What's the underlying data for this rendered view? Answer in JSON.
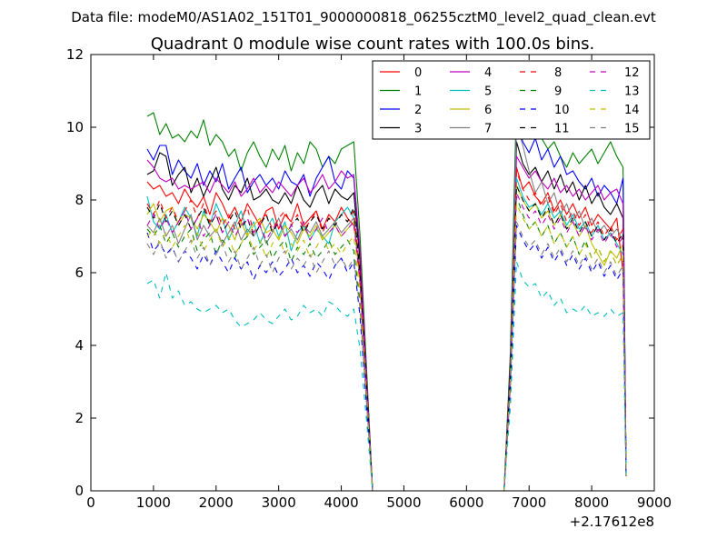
{
  "chart_data": {
    "type": "line",
    "suptitle": "Data file: modeM0/AS1A02_151T01_9000000818_06255cztM0_level2_quad_clean.evt",
    "title": "Quadrant 0 module wise count rates with 100.0s bins.",
    "xlabel": "",
    "ylabel": "",
    "offset_label": "+2.17612e8",
    "xlim": [
      0,
      9000
    ],
    "ylim": [
      0,
      12
    ],
    "x_ticks": [
      "0",
      "1000",
      "2000",
      "3000",
      "4000",
      "5000",
      "6000",
      "7000",
      "8000",
      "9000"
    ],
    "y_ticks": [
      "0",
      "2",
      "4",
      "6",
      "8",
      "10",
      "12"
    ],
    "legend_position": "top-right",
    "legend_columns": 4,
    "x": [
      900,
      1000,
      1100,
      1200,
      1300,
      1400,
      1500,
      1600,
      1700,
      1800,
      1900,
      2000,
      2100,
      2200,
      2300,
      2400,
      2500,
      2600,
      2700,
      2800,
      2900,
      3000,
      3100,
      3200,
      3300,
      3400,
      3500,
      3600,
      3700,
      3800,
      3900,
      4000,
      4100,
      4200,
      4300,
      4400,
      4500,
      4600,
      6600,
      6700,
      6800,
      6900,
      7000,
      7100,
      7200,
      7300,
      7400,
      7500,
      7600,
      7700,
      7800,
      7900,
      8000,
      8100,
      8200,
      8300,
      8400,
      8500,
      8550
    ],
    "series": [
      {
        "name": "0",
        "color": "#ff0000",
        "dashed": false,
        "values": [
          8.5,
          8.3,
          8.4,
          8.1,
          8.2,
          7.9,
          8.3,
          8.0,
          7.8,
          8.1,
          7.6,
          8.2,
          7.9,
          7.5,
          7.8,
          7.4,
          7.9,
          7.6,
          7.3,
          7.7,
          7.8,
          7.2,
          7.6,
          7.4,
          7.9,
          7.3,
          7.5,
          7.7,
          7.2,
          7.6,
          7.4,
          7.8,
          7.5,
          7.3,
          6.0,
          3.0,
          0.0,
          0.0,
          0.0,
          3.0,
          8.9,
          8.3,
          8.5,
          8.1,
          7.9,
          8.2,
          7.7,
          8.0,
          7.6,
          7.9,
          7.5,
          7.8,
          7.3,
          7.6,
          7.4,
          7.2,
          7.5,
          6.0,
          0.5
        ]
      },
      {
        "name": "1",
        "color": "#008000",
        "dashed": false,
        "values": [
          10.3,
          10.4,
          9.8,
          10.1,
          9.7,
          9.8,
          9.6,
          9.9,
          9.7,
          10.2,
          9.5,
          9.8,
          9.6,
          9.2,
          9.4,
          8.8,
          9.3,
          9.6,
          9.2,
          8.9,
          9.4,
          9.1,
          9.5,
          8.8,
          9.3,
          9.0,
          9.6,
          9.4,
          8.9,
          9.2,
          9.0,
          9.4,
          9.5,
          9.6,
          7.0,
          3.5,
          0.0,
          0.0,
          0.0,
          3.8,
          10.8,
          10.3,
          9.8,
          10.0,
          9.7,
          9.4,
          9.6,
          9.2,
          8.9,
          9.3,
          9.0,
          9.2,
          9.4,
          9.0,
          9.3,
          9.6,
          9.2,
          8.9,
          0.5
        ]
      },
      {
        "name": "2",
        "color": "#0000ff",
        "dashed": false,
        "values": [
          9.4,
          9.1,
          9.5,
          9.5,
          8.7,
          9.1,
          8.8,
          8.6,
          9.0,
          8.4,
          8.8,
          8.5,
          9.0,
          8.3,
          8.6,
          8.9,
          8.2,
          8.5,
          8.7,
          8.4,
          8.6,
          8.3,
          8.8,
          8.5,
          8.4,
          8.7,
          8.1,
          8.6,
          8.9,
          9.2,
          8.5,
          8.3,
          8.8,
          8.6,
          6.5,
          3.2,
          0.0,
          0.0,
          0.0,
          3.5,
          10.2,
          9.6,
          9.3,
          9.7,
          9.1,
          9.4,
          8.9,
          9.2,
          8.7,
          8.8,
          8.5,
          8.3,
          8.6,
          8.1,
          8.4,
          8.2,
          7.9,
          8.6,
          0.4
        ]
      },
      {
        "name": "3",
        "color": "#000000",
        "dashed": false,
        "values": [
          8.7,
          8.8,
          9.3,
          9.2,
          8.4,
          8.7,
          8.9,
          8.2,
          8.6,
          8.1,
          8.5,
          8.9,
          8.3,
          8.0,
          8.4,
          8.2,
          8.6,
          8.0,
          8.1,
          8.3,
          8.0,
          7.9,
          8.2,
          7.9,
          8.4,
          8.0,
          7.8,
          8.2,
          8.4,
          7.9,
          8.3,
          8.1,
          8.0,
          8.2,
          6.3,
          3.0,
          0.0,
          0.0,
          0.0,
          3.4,
          9.6,
          9.0,
          8.7,
          8.9,
          8.5,
          8.8,
          8.3,
          8.7,
          8.2,
          8.5,
          8.0,
          8.4,
          7.9,
          8.2,
          7.8,
          7.6,
          7.9,
          7.5,
          0.5
        ]
      },
      {
        "name": "4",
        "color": "#bf00bf",
        "dashed": false,
        "values": [
          9.1,
          8.9,
          8.6,
          8.5,
          8.6,
          8.3,
          8.4,
          8.3,
          8.4,
          8.5,
          8.2,
          8.6,
          8.4,
          8.2,
          8.5,
          8.1,
          8.3,
          8.6,
          8.2,
          8.4,
          8.2,
          8.5,
          8.3,
          8.1,
          8.4,
          8.6,
          8.2,
          8.4,
          8.7,
          8.3,
          8.5,
          8.8,
          8.6,
          8.7,
          6.6,
          3.2,
          0.0,
          0.0,
          0.0,
          3.3,
          9.2,
          8.9,
          8.6,
          8.8,
          8.5,
          8.3,
          8.6,
          8.2,
          8.4,
          8.1,
          8.3,
          8.0,
          8.2,
          8.4,
          8.0,
          8.2,
          8.3,
          7.9,
          0.5
        ]
      },
      {
        "name": "5",
        "color": "#00bfbf",
        "dashed": false,
        "values": [
          8.1,
          7.4,
          7.2,
          7.6,
          7.1,
          7.4,
          7.8,
          7.5,
          7.0,
          7.7,
          7.3,
          7.9,
          7.5,
          6.9,
          7.3,
          7.7,
          7.1,
          7.4,
          6.8,
          7.2,
          7.5,
          7.0,
          7.4,
          6.6,
          7.1,
          7.3,
          6.9,
          7.2,
          7.0,
          6.8,
          7.4,
          7.6,
          7.8,
          7.5,
          5.8,
          2.9,
          0.0,
          0.0,
          0.0,
          3.1,
          8.6,
          8.1,
          7.8,
          7.9,
          7.6,
          7.9,
          7.5,
          7.7,
          7.3,
          7.6,
          7.2,
          7.4,
          7.0,
          7.3,
          6.9,
          7.1,
          6.8,
          6.5,
          0.4
        ]
      },
      {
        "name": "6",
        "color": "#bfbf00",
        "dashed": false,
        "values": [
          7.6,
          7.9,
          7.4,
          7.7,
          7.8,
          7.3,
          7.6,
          7.5,
          7.2,
          7.6,
          7.4,
          7.1,
          7.5,
          7.3,
          6.9,
          7.4,
          7.0,
          7.3,
          7.5,
          7.1,
          7.2,
          6.9,
          7.3,
          7.1,
          6.8,
          7.2,
          7.0,
          7.3,
          6.9,
          7.1,
          7.3,
          7.0,
          7.2,
          7.4,
          5.7,
          2.8,
          0.0,
          0.0,
          0.0,
          3.0,
          8.4,
          8.0,
          7.7,
          7.9,
          7.5,
          7.7,
          7.3,
          7.6,
          7.2,
          7.4,
          7.0,
          7.3,
          6.8,
          6.5,
          6.2,
          6.6,
          6.4,
          6.8,
          0.4
        ]
      },
      {
        "name": "7",
        "color": "#808080",
        "dashed": false,
        "values": [
          7.3,
          7.1,
          7.5,
          7.0,
          7.3,
          6.8,
          7.2,
          7.6,
          6.9,
          7.3,
          7.0,
          7.2,
          6.8,
          7.1,
          7.4,
          6.9,
          7.2,
          7.0,
          7.3,
          6.8,
          7.1,
          7.5,
          7.0,
          7.2,
          6.9,
          7.3,
          7.1,
          7.4,
          7.0,
          7.2,
          7.4,
          7.1,
          7.3,
          7.5,
          5.8,
          2.9,
          0.0,
          0.0,
          0.0,
          3.3,
          10.1,
          9.5,
          8.8,
          8.2,
          8.5,
          7.9,
          8.2,
          7.6,
          7.9,
          7.4,
          7.7,
          7.2,
          7.5,
          7.1,
          7.3,
          7.0,
          7.2,
          6.9,
          0.4
        ]
      },
      {
        "name": "8",
        "color": "#ff0000",
        "dashed": true,
        "values": [
          7.9,
          7.6,
          8.0,
          7.5,
          7.8,
          7.4,
          7.7,
          8.0,
          7.5,
          7.9,
          7.4,
          7.7,
          7.3,
          7.6,
          7.2,
          7.5,
          7.8,
          7.1,
          7.4,
          7.6,
          7.2,
          7.5,
          7.7,
          7.3,
          7.6,
          7.2,
          7.4,
          7.7,
          7.1,
          7.5,
          7.3,
          7.6,
          7.4,
          7.7,
          5.9,
          2.9,
          0.0,
          0.0,
          0.0,
          3.2,
          8.8,
          8.3,
          8.0,
          8.2,
          7.8,
          8.1,
          7.6,
          7.9,
          7.4,
          7.7,
          7.3,
          7.6,
          7.1,
          7.4,
          7.0,
          7.3,
          6.9,
          7.2,
          0.5
        ]
      },
      {
        "name": "9",
        "color": "#008000",
        "dashed": true,
        "values": [
          7.2,
          7.0,
          7.3,
          6.8,
          7.1,
          6.7,
          7.0,
          7.2,
          6.6,
          6.9,
          7.1,
          6.5,
          6.9,
          6.7,
          6.4,
          6.8,
          7.0,
          6.5,
          6.7,
          6.9,
          6.4,
          6.7,
          6.9,
          6.3,
          6.7,
          6.5,
          6.8,
          6.4,
          6.6,
          6.9,
          6.5,
          6.7,
          6.9,
          6.6,
          5.2,
          2.6,
          0.0,
          0.0,
          0.0,
          2.9,
          8.1,
          7.6,
          7.2,
          7.4,
          7.0,
          7.3,
          6.8,
          7.1,
          6.7,
          7.0,
          6.5,
          6.9,
          6.4,
          6.7,
          6.3,
          6.6,
          6.2,
          6.5,
          0.4
        ]
      },
      {
        "name": "10",
        "color": "#0000ff",
        "dashed": true,
        "values": [
          7.1,
          6.6,
          6.8,
          6.5,
          6.7,
          6.3,
          6.6,
          6.4,
          6.1,
          6.5,
          6.2,
          6.6,
          6.3,
          6.0,
          6.4,
          6.1,
          6.3,
          5.8,
          6.2,
          6.0,
          6.3,
          5.9,
          6.1,
          6.4,
          6.0,
          6.2,
          5.9,
          6.3,
          6.1,
          5.8,
          6.2,
          6.4,
          6.0,
          6.3,
          4.8,
          2.4,
          0.0,
          0.0,
          0.0,
          2.8,
          7.3,
          6.9,
          6.6,
          6.8,
          6.4,
          6.7,
          6.3,
          6.6,
          6.2,
          6.5,
          6.1,
          6.4,
          6.0,
          6.3,
          5.9,
          6.2,
          5.8,
          6.1,
          0.4
        ]
      },
      {
        "name": "11",
        "color": "#000000",
        "dashed": true,
        "values": [
          7.8,
          7.5,
          7.9,
          7.4,
          7.7,
          7.3,
          7.6,
          7.2,
          7.5,
          7.8,
          7.3,
          7.6,
          7.1,
          7.4,
          7.7,
          7.2,
          7.5,
          7.0,
          7.3,
          7.6,
          7.1,
          7.4,
          7.0,
          7.3,
          7.5,
          7.1,
          7.4,
          7.6,
          7.2,
          7.5,
          7.3,
          7.6,
          7.4,
          7.8,
          6.0,
          3.0,
          0.0,
          0.0,
          0.0,
          3.2,
          8.4,
          8.0,
          7.7,
          7.9,
          7.5,
          7.8,
          7.3,
          7.6,
          7.2,
          7.5,
          7.1,
          7.4,
          7.0,
          7.3,
          6.9,
          7.2,
          6.8,
          7.1,
          0.5
        ]
      },
      {
        "name": "12",
        "color": "#bf00bf",
        "dashed": true,
        "values": [
          7.3,
          7.6,
          7.2,
          7.5,
          7.1,
          7.4,
          7.7,
          7.2,
          7.5,
          7.0,
          7.3,
          7.6,
          7.1,
          7.4,
          7.0,
          7.3,
          7.5,
          7.1,
          7.3,
          6.9,
          7.2,
          7.4,
          7.0,
          7.3,
          7.1,
          7.4,
          6.9,
          7.2,
          7.5,
          7.1,
          7.3,
          7.0,
          7.2,
          7.4,
          5.7,
          2.8,
          0.0,
          0.0,
          0.0,
          3.1,
          8.2,
          7.8,
          7.5,
          7.7,
          7.3,
          7.6,
          7.2,
          7.5,
          7.1,
          7.4,
          7.0,
          7.3,
          6.9,
          7.2,
          6.8,
          7.1,
          6.7,
          7.0,
          0.4
        ]
      },
      {
        "name": "13",
        "color": "#00bfbf",
        "dashed": true,
        "values": [
          5.7,
          5.8,
          5.3,
          6.0,
          5.3,
          5.5,
          5.1,
          5.2,
          5.0,
          4.9,
          5.0,
          5.1,
          4.9,
          5.0,
          4.7,
          4.5,
          4.6,
          4.7,
          4.9,
          4.7,
          4.6,
          4.8,
          5.0,
          4.7,
          4.8,
          5.1,
          4.9,
          5.0,
          4.8,
          5.2,
          5.1,
          4.9,
          4.8,
          5.0,
          3.9,
          2.0,
          0.0,
          0.0,
          0.0,
          2.3,
          6.3,
          5.8,
          5.6,
          5.7,
          5.3,
          5.5,
          5.1,
          5.3,
          4.9,
          5.0,
          4.9,
          5.1,
          4.8,
          4.9,
          4.8,
          5.0,
          4.8,
          4.9,
          0.3
        ]
      },
      {
        "name": "14",
        "color": "#bfbf00",
        "dashed": true,
        "values": [
          7.0,
          7.2,
          6.8,
          7.1,
          6.7,
          7.0,
          7.3,
          6.8,
          7.1,
          6.6,
          6.9,
          7.2,
          6.7,
          7.0,
          6.5,
          6.8,
          7.1,
          6.6,
          6.9,
          6.4,
          6.8,
          7.0,
          6.5,
          6.8,
          6.6,
          6.9,
          6.4,
          6.7,
          7.0,
          6.6,
          6.8,
          6.5,
          6.8,
          7.0,
          5.4,
          2.7,
          0.0,
          0.0,
          0.0,
          3.0,
          7.9,
          7.5,
          7.2,
          7.4,
          7.0,
          7.3,
          6.8,
          7.1,
          6.7,
          7.0,
          6.5,
          6.8,
          6.4,
          6.7,
          6.3,
          6.6,
          6.2,
          6.5,
          0.4
        ]
      },
      {
        "name": "15",
        "color": "#808080",
        "dashed": true,
        "values": [
          6.8,
          6.5,
          6.9,
          6.4,
          6.7,
          6.3,
          6.6,
          6.9,
          6.4,
          6.7,
          6.2,
          6.5,
          6.8,
          6.3,
          6.6,
          6.1,
          6.4,
          6.7,
          6.2,
          6.5,
          6.0,
          6.4,
          6.6,
          6.1,
          6.4,
          6.2,
          6.5,
          6.0,
          6.3,
          6.6,
          6.2,
          6.4,
          6.1,
          6.4,
          5.0,
          2.5,
          0.0,
          0.0,
          0.0,
          2.8,
          7.4,
          7.0,
          6.7,
          6.9,
          6.5,
          6.8,
          6.4,
          6.7,
          6.3,
          6.6,
          6.2,
          6.5,
          6.1,
          6.4,
          6.0,
          6.3,
          5.9,
          6.2,
          0.4
        ]
      }
    ]
  }
}
